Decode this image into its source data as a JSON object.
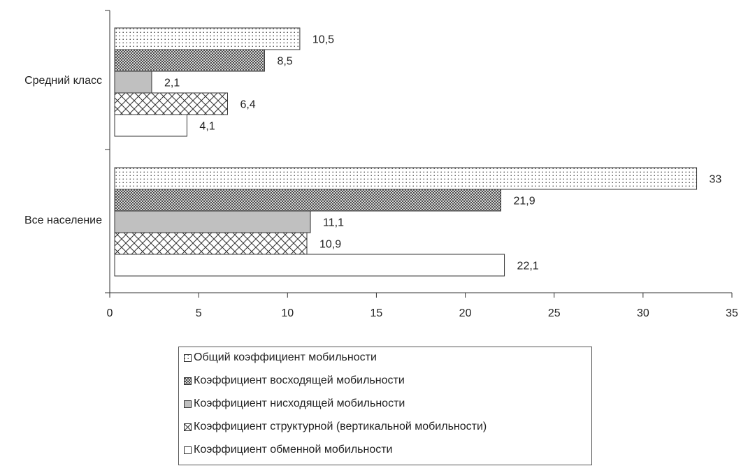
{
  "chart_data": {
    "type": "bar",
    "orientation": "horizontal",
    "categories": [
      "Средний класс",
      "Все население"
    ],
    "series": [
      {
        "name": "Общий коэффициент мобильности",
        "pattern": "dots",
        "values": [
          10.5,
          33
        ]
      },
      {
        "name": "Коэффициент восходящей мобильности",
        "pattern": "dense-crosshatch",
        "values": [
          8.5,
          21.9
        ]
      },
      {
        "name": "Коэффициент нисходящей мобильности",
        "pattern": "solid-gray",
        "values": [
          2.1,
          11.1
        ]
      },
      {
        "name": "Коэффициент структурной (вертикальной мобильности)",
        "pattern": "diamond-crosshatch",
        "values": [
          6.4,
          10.9
        ]
      },
      {
        "name": "Коэффициент обменной мобильности",
        "pattern": "white",
        "values": [
          4.1,
          22.1
        ]
      }
    ],
    "value_labels": [
      [
        "10,5",
        "33"
      ],
      [
        "8,5",
        "21,9"
      ],
      [
        "2,1",
        "11,1"
      ],
      [
        "6,4",
        "10,9"
      ],
      [
        "4,1",
        "22,1"
      ]
    ],
    "xlim": [
      0,
      35
    ],
    "xticks": [
      "0",
      "5",
      "10",
      "15",
      "20",
      "25",
      "30",
      "35"
    ],
    "title": "",
    "xlabel": "",
    "ylabel": "",
    "grid": false,
    "legend_position": "bottom",
    "colors": {
      "bar_fill_solid": "#c0c0c0",
      "bar_stroke": "#333333",
      "pattern_ink": "#333333"
    }
  }
}
